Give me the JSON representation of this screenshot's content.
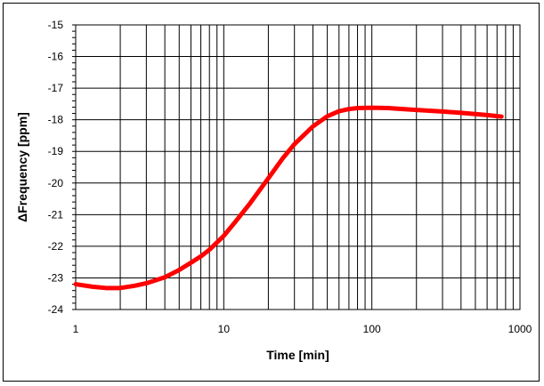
{
  "chart_data": {
    "type": "line",
    "title": "",
    "xlabel": "Time [min]",
    "ylabel": "ΔFrequency [ppm]",
    "x_scale": "log",
    "xlim": [
      1,
      1000
    ],
    "ylim": [
      -24,
      -15
    ],
    "x_ticks": [
      1,
      10,
      100,
      1000
    ],
    "x_tick_labels": [
      "1",
      "10",
      "100",
      "1000"
    ],
    "y_ticks": [
      -15,
      -16,
      -17,
      -18,
      -19,
      -20,
      -21,
      -22,
      -23,
      -24
    ],
    "y_tick_labels": [
      "-15",
      "-16",
      "-17",
      "-18",
      "-19",
      "-20",
      "-21",
      "-22",
      "-23",
      "-24"
    ],
    "grid": true,
    "legend": "none",
    "line_color": "#ff0000",
    "series": [
      {
        "x": [
          1,
          1.3,
          1.6,
          2,
          2.5,
          3,
          4,
          5,
          6,
          7,
          8,
          10,
          12,
          15,
          20,
          25,
          30,
          40,
          50,
          60,
          70,
          80,
          100,
          130,
          150,
          200,
          300,
          400,
          500,
          600,
          750
        ],
        "y": [
          -23.2,
          -23.28,
          -23.32,
          -23.32,
          -23.25,
          -23.17,
          -22.98,
          -22.75,
          -22.52,
          -22.32,
          -22.11,
          -21.67,
          -21.22,
          -20.65,
          -19.85,
          -19.22,
          -18.77,
          -18.21,
          -17.89,
          -17.73,
          -17.66,
          -17.63,
          -17.62,
          -17.63,
          -17.65,
          -17.69,
          -17.74,
          -17.78,
          -17.82,
          -17.85,
          -17.9
        ]
      }
    ]
  }
}
